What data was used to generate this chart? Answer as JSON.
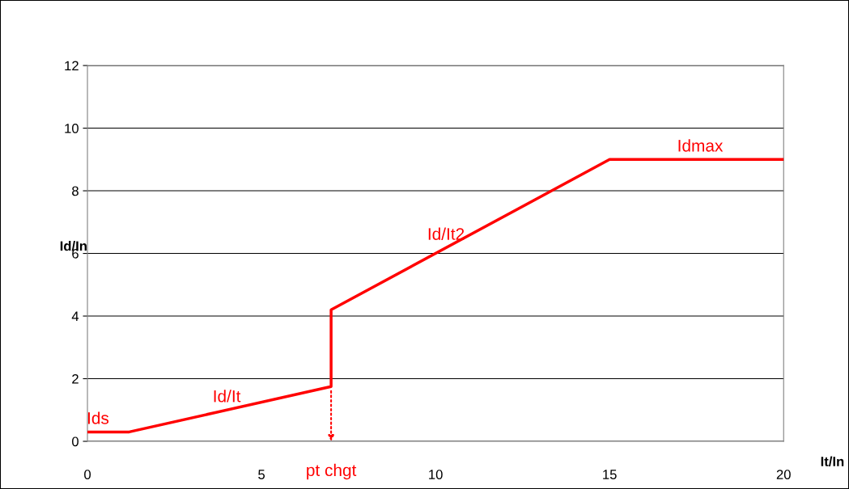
{
  "chart_data": {
    "type": "line",
    "xlabel": "It/In",
    "ylabel": "Id/In",
    "x": [
      0,
      1.2,
      7,
      7,
      15,
      20
    ],
    "series": [
      {
        "color": "#ff0000",
        "values": [
          0.3,
          0.3,
          1.75,
          4.2,
          9,
          9
        ]
      }
    ],
    "xlim": [
      0,
      20
    ],
    "xticks": [
      0,
      5,
      10,
      15,
      20
    ],
    "ylim": [
      0,
      12
    ],
    "yticks": [
      0,
      2,
      4,
      6,
      8,
      10,
      12
    ],
    "grid": "y",
    "marker": "none",
    "line_style": "solid",
    "annotations": [
      {
        "text": "Ids",
        "x": 0.3,
        "y": 0.3
      },
      {
        "text": "Id/It",
        "x": 4,
        "y": 1.0
      },
      {
        "text": "Id/It2",
        "x": 10.3,
        "y": 6.18
      },
      {
        "text": "Idmax",
        "x": 17.6,
        "y": 9
      },
      "pt chgt"
    ]
  }
}
